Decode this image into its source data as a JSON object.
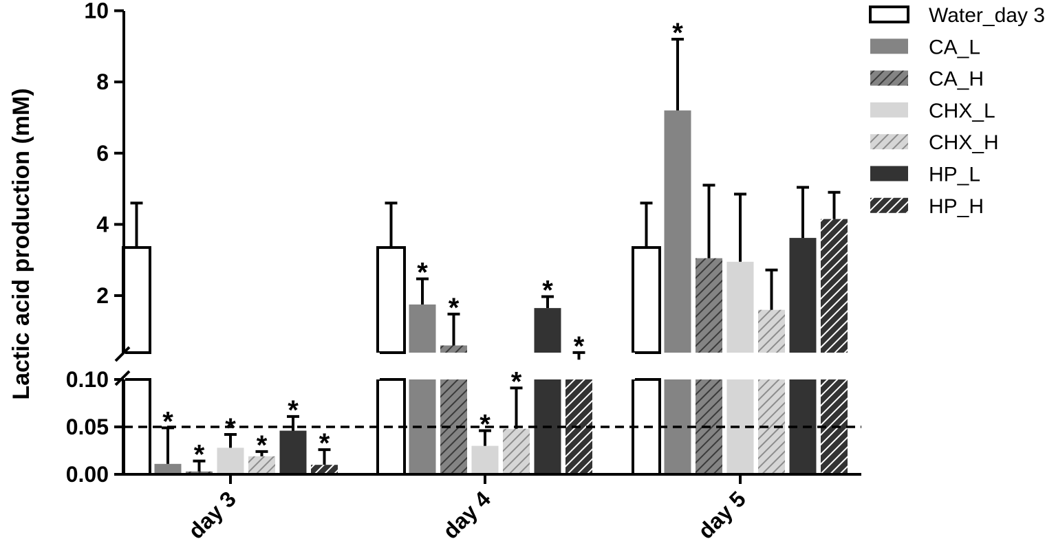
{
  "chart_data": {
    "type": "bar",
    "ylabel": "Lactic acid production (mM)",
    "xlabel": "",
    "categories": [
      "day 3",
      "day 4",
      "day 5"
    ],
    "y_axis_broken": true,
    "y_lower_range": [
      0,
      0.1
    ],
    "y_upper_range": [
      0.15,
      10
    ],
    "y_lower_ticks": [
      "0.00",
      "0.05",
      "0.10"
    ],
    "y_upper_ticks": [
      "2",
      "4",
      "6",
      "8",
      "10"
    ],
    "reference_line": {
      "y": 0.05,
      "style": "dashed"
    },
    "legend_placement": "right",
    "significance_marker": "*",
    "series": [
      {
        "name": "Water_day 3",
        "fill": "#ffffff",
        "hatch": false,
        "hatch_color": "",
        "values": [
          3.35,
          3.35,
          3.35
        ],
        "errors": [
          1.25,
          1.25,
          1.25
        ],
        "significant": [
          false,
          false,
          false
        ]
      },
      {
        "name": "CA_L",
        "fill": "#848484",
        "hatch": false,
        "hatch_color": "",
        "values": [
          0.011,
          1.75,
          7.2
        ],
        "errors": [
          0.038,
          0.72,
          2.0
        ],
        "significant": [
          true,
          true,
          true
        ]
      },
      {
        "name": "CA_H",
        "fill": "#848484",
        "hatch": true,
        "hatch_color": "#3a3a3a",
        "values": [
          0.003,
          0.6,
          3.05
        ],
        "errors": [
          0.011,
          0.88,
          2.05
        ],
        "significant": [
          true,
          true,
          false
        ]
      },
      {
        "name": "CHX_L",
        "fill": "#d6d6d6",
        "hatch": false,
        "hatch_color": "",
        "values": [
          0.028,
          0.03,
          2.95
        ],
        "errors": [
          0.014,
          0.016,
          1.9
        ],
        "significant": [
          true,
          true,
          false
        ]
      },
      {
        "name": "CHX_H",
        "fill": "#d6d6d6",
        "hatch": true,
        "hatch_color": "#8c8c8c",
        "values": [
          0.019,
          0.048,
          1.6
        ],
        "errors": [
          0.005,
          0.043,
          1.12
        ],
        "significant": [
          true,
          true,
          false
        ]
      },
      {
        "name": "HP_L",
        "fill": "#333333",
        "hatch": false,
        "hatch_color": "",
        "values": [
          0.046,
          1.65,
          3.62
        ],
        "errors": [
          0.015,
          0.32,
          1.42
        ],
        "significant": [
          true,
          true,
          false
        ]
      },
      {
        "name": "HP_H",
        "fill": "#333333",
        "hatch": true,
        "hatch_color": "#ffffff",
        "values": [
          0.01,
          0.2,
          4.15
        ],
        "errors": [
          0.016,
          0.2,
          0.75
        ],
        "significant": [
          true,
          true,
          false
        ]
      }
    ]
  }
}
